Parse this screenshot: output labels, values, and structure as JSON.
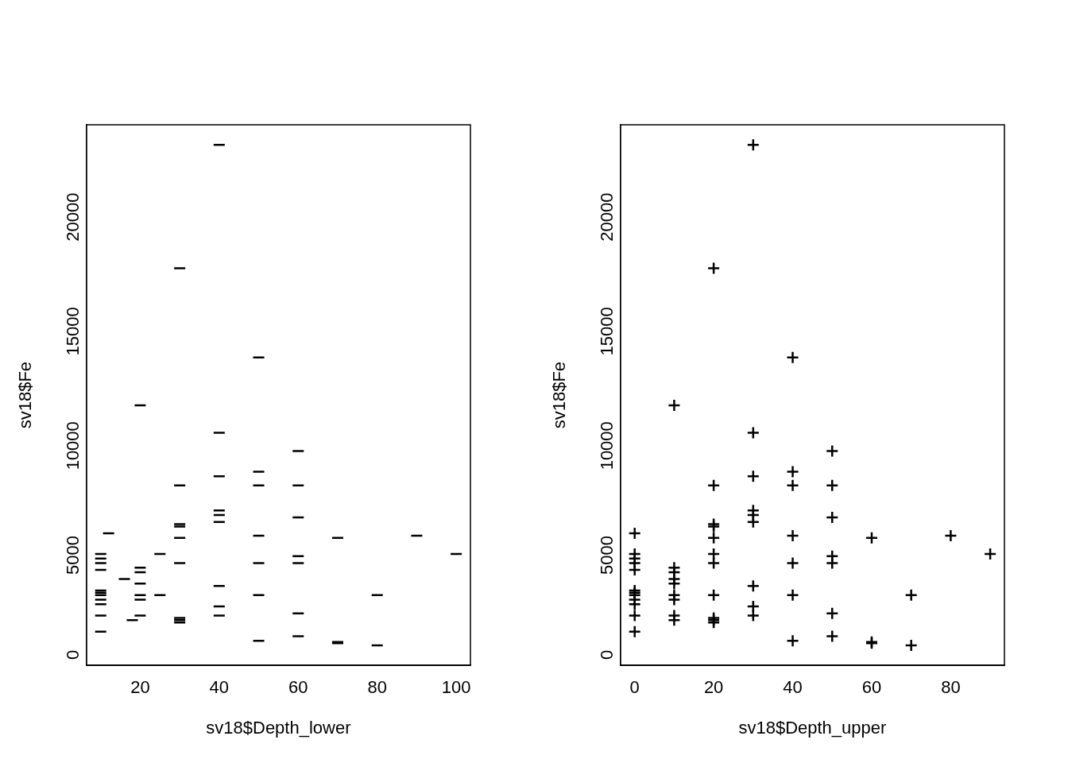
{
  "chart_data": [
    {
      "type": "scatter",
      "xlabel": "sv18$Depth_lower",
      "ylabel": "sv18$Fe",
      "marker": "dash",
      "color": "#000000",
      "grid": false,
      "x": [
        12,
        10,
        10,
        10,
        10,
        10,
        10,
        10,
        10,
        10,
        10,
        10,
        16,
        18,
        20,
        20,
        20,
        20,
        20,
        20,
        20,
        25,
        25,
        30,
        30,
        30,
        30,
        30,
        30,
        30,
        30,
        30,
        40,
        40,
        40,
        40,
        40,
        40,
        40,
        40,
        40,
        50,
        50,
        50,
        50,
        50,
        50,
        50,
        60,
        60,
        60,
        60,
        60,
        60,
        60,
        70,
        70,
        70,
        80,
        80,
        90,
        100
      ],
      "values": [
        5100,
        4200,
        4000,
        3800,
        3500,
        2600,
        2500,
        2400,
        2200,
        2000,
        1500,
        800,
        3100,
        1300,
        10700,
        3600,
        3400,
        2900,
        2400,
        2200,
        1500,
        4200,
        2400,
        16700,
        7200,
        5500,
        5400,
        4900,
        3800,
        1400,
        1300,
        1200,
        22100,
        9500,
        7600,
        6100,
        5900,
        5600,
        2800,
        1900,
        1500,
        12800,
        7800,
        7200,
        5000,
        3800,
        2400,
        400,
        8700,
        7200,
        5800,
        4100,
        3800,
        1600,
        600,
        4900,
        350,
        300,
        2400,
        200,
        5000,
        4200
      ],
      "xlim": [
        6.4,
        103.6
      ],
      "xticks": [
        20,
        40,
        60,
        80,
        100
      ],
      "ylim": [
        -676,
        22976
      ],
      "yticks": [
        0,
        5000,
        10000,
        15000,
        20000
      ]
    },
    {
      "type": "scatter",
      "xlabel": "sv18$Depth_upper",
      "ylabel": "sv18$Fe",
      "marker": "plus",
      "color": "#000000",
      "grid": false,
      "x": [
        0,
        0,
        0,
        0,
        0,
        0,
        0,
        0,
        0,
        0,
        0,
        0,
        10,
        10,
        10,
        10,
        10,
        10,
        10,
        10,
        10,
        20,
        20,
        20,
        20,
        20,
        20,
        20,
        20,
        20,
        20,
        20,
        30,
        30,
        30,
        30,
        30,
        30,
        30,
        30,
        30,
        40,
        40,
        40,
        40,
        40,
        40,
        40,
        50,
        50,
        50,
        50,
        50,
        50,
        50,
        60,
        60,
        60,
        70,
        70,
        80,
        90
      ],
      "values": [
        5100,
        4200,
        4000,
        3800,
        3500,
        2600,
        2500,
        2400,
        2200,
        2000,
        1500,
        800,
        3100,
        1300,
        10700,
        3600,
        3400,
        2900,
        2400,
        2200,
        1500,
        4200,
        2400,
        16700,
        7200,
        5500,
        5400,
        4900,
        3800,
        1400,
        1300,
        1200,
        22100,
        9500,
        7600,
        6100,
        5900,
        5600,
        2800,
        1900,
        1500,
        12800,
        7800,
        7200,
        5000,
        3800,
        2400,
        400,
        8700,
        7200,
        5800,
        4100,
        3800,
        1600,
        600,
        4900,
        350,
        300,
        2400,
        200,
        5000,
        4200
      ],
      "xlim": [
        -3.6,
        93.6
      ],
      "xticks": [
        0,
        20,
        40,
        60,
        80
      ],
      "ylim": [
        -676,
        22976
      ],
      "yticks": [
        0,
        5000,
        10000,
        15000,
        20000
      ]
    }
  ]
}
